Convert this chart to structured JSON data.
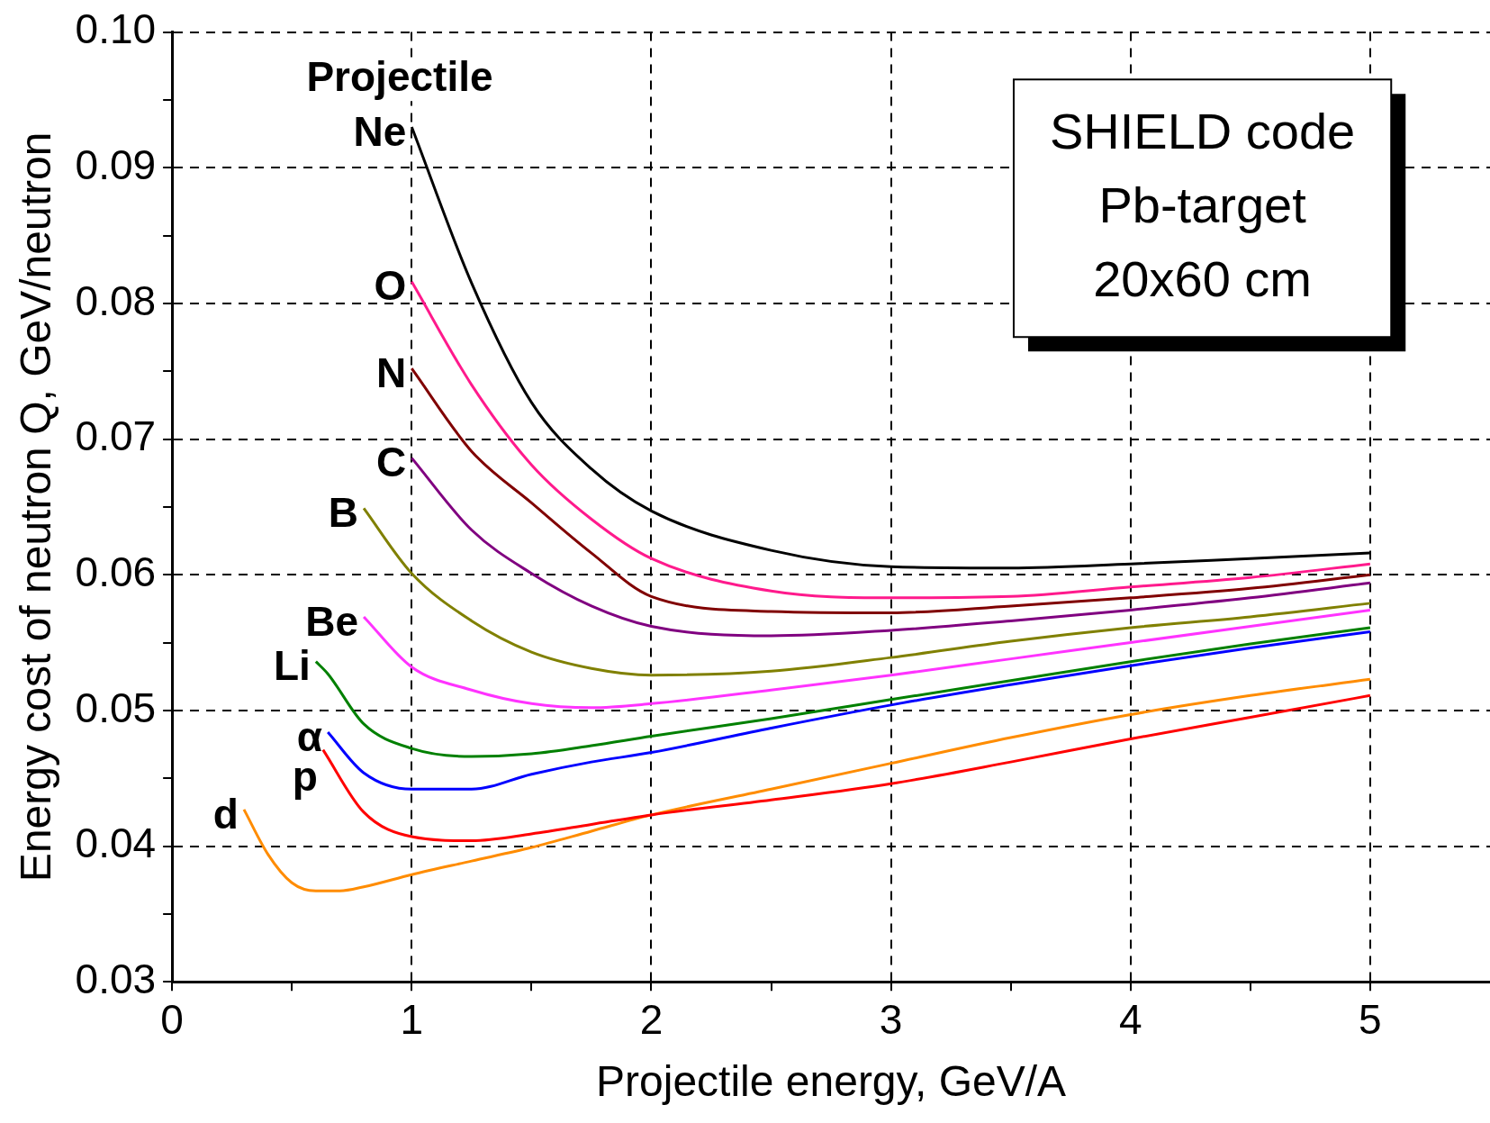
{
  "chart_data": {
    "type": "line",
    "xlabel": "Projectile energy, GeV/A",
    "ylabel": "Energy cost of neutron Q, GeV/neutron",
    "legend_title": "Projectile",
    "annotations": [
      "SHIELD code",
      "Pb-target",
      "20x60 cm"
    ],
    "xlim": [
      0,
      5.5
    ],
    "xticks": [
      0,
      {
        "value": 0.5,
        "label": null
      },
      1,
      {
        "value": 1.5,
        "label": null
      },
      2,
      {
        "value": 2.5,
        "label": null
      },
      3,
      {
        "value": 3.5,
        "label": null
      },
      4,
      {
        "value": 4.5,
        "label": null
      },
      5
    ],
    "ylim": [
      0.03,
      0.1
    ],
    "yticks": [
      0.03,
      {
        "value": 0.035,
        "label": null
      },
      0.04,
      {
        "value": 0.045,
        "label": null
      },
      0.05,
      {
        "value": 0.055,
        "label": null
      },
      0.06,
      {
        "value": 0.065,
        "label": null
      },
      0.07,
      {
        "value": 0.075,
        "label": null
      },
      0.08,
      {
        "value": 0.085,
        "label": null
      },
      0.09,
      {
        "value": 0.095,
        "label": null
      },
      {
        "value": 0.1,
        "label": "0.10"
      }
    ],
    "grid": true,
    "legend": false,
    "marker": "none",
    "line_style": "solid",
    "series": [
      {
        "name": "Ne",
        "color": "#000000",
        "x": [
          1,
          1.25,
          1.5,
          1.75,
          2,
          2.5,
          3,
          3.5,
          4,
          4.5,
          5
        ],
        "values": [
          0.093,
          0.0815,
          0.0727,
          0.0678,
          0.0647,
          0.0618,
          0.0606,
          0.0605,
          0.0608,
          0.0612,
          0.0616
        ]
      },
      {
        "name": "O",
        "color": "#ff1a8c",
        "x": [
          1,
          1.25,
          1.5,
          1.75,
          2,
          2.5,
          3,
          3.5,
          4,
          4.5,
          5
        ],
        "values": [
          0.0816,
          0.074,
          0.0681,
          0.0641,
          0.0612,
          0.0588,
          0.0583,
          0.0584,
          0.0591,
          0.0598,
          0.0608
        ]
      },
      {
        "name": "N",
        "color": "#800000",
        "x": [
          1,
          1.25,
          1.5,
          1.75,
          2,
          2.5,
          3,
          3.5,
          4,
          4.5,
          5
        ],
        "values": [
          0.0752,
          0.0691,
          0.0653,
          0.0616,
          0.0584,
          0.0573,
          0.0572,
          0.0577,
          0.0583,
          0.059,
          0.06
        ]
      },
      {
        "name": "C",
        "color": "#800080",
        "x": [
          1,
          1.25,
          1.5,
          1.75,
          2,
          2.5,
          3,
          3.5,
          4,
          4.5,
          5
        ],
        "values": [
          0.0686,
          0.0633,
          0.0601,
          0.0577,
          0.0562,
          0.0555,
          0.0559,
          0.0566,
          0.0574,
          0.0583,
          0.0594
        ]
      },
      {
        "name": "B",
        "color": "#808000",
        "x": [
          0.8,
          1,
          1.25,
          1.5,
          1.75,
          2,
          2.5,
          3,
          3.5,
          4,
          4.5,
          5
        ],
        "values": [
          0.0649,
          0.0601,
          0.0566,
          0.0543,
          0.0531,
          0.0526,
          0.0529,
          0.0539,
          0.0551,
          0.0561,
          0.0569,
          0.0579
        ]
      },
      {
        "name": "Be",
        "color": "#ff33ff",
        "x": [
          0.8,
          1,
          1.25,
          1.5,
          1.75,
          2,
          2.5,
          3,
          3.5,
          4,
          4.5,
          5
        ],
        "values": [
          0.0569,
          0.0532,
          0.0515,
          0.0505,
          0.0502,
          0.0505,
          0.0515,
          0.0526,
          0.0538,
          0.055,
          0.0562,
          0.0574
        ]
      },
      {
        "name": "Li",
        "color": "#008000",
        "x": [
          0.6,
          0.65,
          0.8,
          1,
          1.25,
          1.5,
          1.75,
          2,
          2.5,
          3,
          3.5,
          4,
          4.5,
          5
        ],
        "values": [
          0.0536,
          0.0527,
          0.049,
          0.0472,
          0.0466,
          0.0468,
          0.0474,
          0.0481,
          0.0494,
          0.0508,
          0.0522,
          0.0536,
          0.0549,
          0.0561
        ]
      },
      {
        "name": "α",
        "color": "#0000ff",
        "x": [
          0.65,
          0.8,
          1,
          1.25,
          1.5,
          1.75,
          2,
          2.5,
          3,
          3.5,
          4,
          4.5,
          5
        ],
        "values": [
          0.0484,
          0.0454,
          0.0442,
          0.0442,
          0.0453,
          0.0462,
          0.0469,
          0.0487,
          0.0504,
          0.0519,
          0.0533,
          0.0546,
          0.0558
        ]
      },
      {
        "name": "p",
        "color": "#ff0000",
        "x": [
          0.63,
          0.8,
          1,
          1.25,
          1.5,
          1.75,
          2,
          2.5,
          3,
          3.5,
          4,
          4.5,
          5
        ],
        "values": [
          0.0471,
          0.0425,
          0.0407,
          0.0404,
          0.0409,
          0.0416,
          0.0423,
          0.0434,
          0.0446,
          0.0462,
          0.0479,
          0.0495,
          0.0511
        ]
      },
      {
        "name": "d",
        "color": "#ff8c00",
        "x": [
          0.3,
          0.4,
          0.5,
          0.6,
          0.7,
          0.8,
          1,
          1.25,
          1.5,
          1.75,
          2,
          2.5,
          3,
          3.5,
          4,
          4.5,
          5
        ],
        "values": [
          0.0427,
          0.0394,
          0.0373,
          0.0367,
          0.0367,
          0.037,
          0.0379,
          0.0389,
          0.0399,
          0.0411,
          0.0423,
          0.0442,
          0.0461,
          0.048,
          0.0497,
          0.0511,
          0.0523
        ]
      }
    ]
  }
}
